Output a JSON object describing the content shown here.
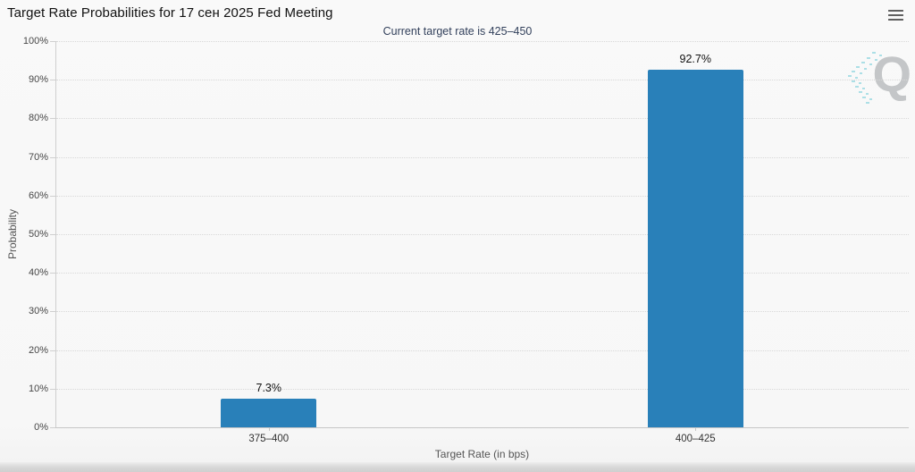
{
  "header": {
    "title": "Target Rate Probabilities for 17 сен 2025 Fed Meeting",
    "subtitle": "Current target rate is 425–450"
  },
  "menu": {
    "icon": "hamburger-menu-icon"
  },
  "watermark": {
    "letter": "Q",
    "icon": "quandl-q-watermark"
  },
  "colors": {
    "bar": "#2980b9",
    "subtitle": "#33415c",
    "grid": "#d8d8d8",
    "axis": "#c6c6c6",
    "background": "#f7f7f7"
  },
  "chart_data": {
    "type": "bar",
    "title": "Target Rate Probabilities for 17 сен 2025 Fed Meeting",
    "subtitle": "Current target rate is 425–450",
    "categories": [
      "375–400",
      "400–425"
    ],
    "values": [
      7.3,
      92.7
    ],
    "value_labels": [
      "7.3%",
      "92.7%"
    ],
    "xlabel": "Target Rate (in bps)",
    "ylabel": "Probability",
    "ylim": [
      0,
      100
    ],
    "ytick_step": 10,
    "ytick_labels": [
      "0%",
      "10%",
      "20%",
      "30%",
      "40%",
      "50%",
      "60%",
      "70%",
      "80%",
      "90%",
      "100%"
    ],
    "grid": "horizontal-dotted",
    "legend": "none"
  }
}
